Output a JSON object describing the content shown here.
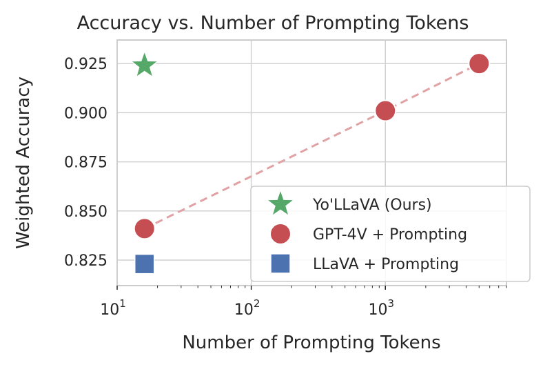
{
  "chart_data": {
    "type": "scatter",
    "title": "Accuracy vs. Number of Prompting Tokens",
    "xlabel": "Number of Prompting Tokens",
    "ylabel": "Weighted Accuracy",
    "xscale": "log",
    "xlim": [
      10,
      8000
    ],
    "ylim": [
      0.812,
      0.937
    ],
    "grid": true,
    "legend_position": "lower-right",
    "x_ticks": [
      {
        "value": 10,
        "base": "10",
        "exp": "1"
      },
      {
        "value": 100,
        "base": "10",
        "exp": "2"
      },
      {
        "value": 1000,
        "base": "10",
        "exp": "3"
      }
    ],
    "y_ticks": [
      {
        "value": 0.825,
        "label": "0.825"
      },
      {
        "value": 0.85,
        "label": "0.850"
      },
      {
        "value": 0.875,
        "label": "0.875"
      },
      {
        "value": 0.9,
        "label": "0.900"
      },
      {
        "value": 0.925,
        "label": "0.925"
      }
    ],
    "series": [
      {
        "name": "Yo'LLaVA (Ours)",
        "marker": "star",
        "color": "#55a868",
        "points": [
          {
            "x": 16,
            "y": 0.924
          }
        ]
      },
      {
        "name": "GPT-4V + Prompting",
        "marker": "circle",
        "color": "#c44e52",
        "points": [
          {
            "x": 16,
            "y": 0.841
          },
          {
            "x": 1000,
            "y": 0.901
          },
          {
            "x": 5000,
            "y": 0.925
          }
        ],
        "trend_line": true,
        "trend_color": "#e0a2a4"
      },
      {
        "name": "LLaVA + Prompting",
        "marker": "square",
        "color": "#4c72b0",
        "points": [
          {
            "x": 16,
            "y": 0.823
          }
        ]
      }
    ]
  }
}
